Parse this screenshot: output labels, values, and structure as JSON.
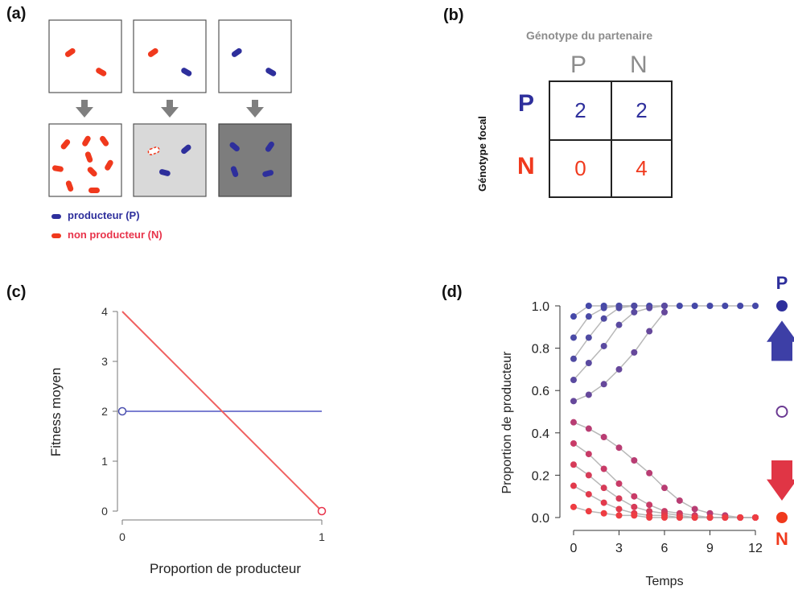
{
  "labels": {
    "a": "(a)",
    "b": "(b)",
    "c": "(c)",
    "d": "(d)"
  },
  "colors": {
    "producer": "#2e2f9c",
    "non_producer": "#f0391d",
    "gray": "#8c8c8c",
    "pink_red": "#e8334a"
  },
  "panel_a": {
    "legend": [
      {
        "text": "producteur (P)",
        "color": "#2e2f9c"
      },
      {
        "text": "non producteur (N)",
        "color": "#e8334a"
      }
    ]
  },
  "panel_b": {
    "title": "Génotype du partenaire",
    "row_axis": "Génotype focal",
    "col_headers": [
      "P",
      "N"
    ],
    "row_headers": [
      "P",
      "N"
    ],
    "cells": [
      [
        "2",
        "2"
      ],
      [
        "0",
        "4"
      ]
    ]
  },
  "chart_data": [
    {
      "type": "line",
      "xlabel": "Proportion de producteur",
      "ylabel": "Fitness moyen",
      "xlim": [
        0,
        1
      ],
      "ylim": [
        0,
        4
      ],
      "x_ticks": [
        "0",
        "1"
      ],
      "y_ticks": [
        "0",
        "1",
        "2",
        "3",
        "4"
      ],
      "grid": false,
      "series": [
        {
          "color": "#7b7fd1",
          "x": [
            0,
            1
          ],
          "y": [
            2,
            2
          ]
        },
        {
          "color": "#f06060",
          "x": [
            0,
            1
          ],
          "y": [
            4,
            0
          ]
        }
      ],
      "markers": [
        {
          "x": 0,
          "y": 2,
          "color": "#4a4fae"
        },
        {
          "x": 1,
          "y": 0,
          "color": "#e8334a"
        }
      ]
    },
    {
      "type": "line",
      "xlabel": "Temps",
      "ylabel": "Proportion de producteur",
      "xlim": [
        0,
        12
      ],
      "ylim": [
        0,
        1
      ],
      "x_ticks": [
        "0",
        "3",
        "6",
        "9",
        "12"
      ],
      "y_ticks": [
        "0.0",
        "0.2",
        "0.4",
        "0.6",
        "0.8",
        "1.0"
      ],
      "grid": false,
      "series": [
        {
          "color": "#4548a8",
          "x": [
            0,
            1,
            2,
            3,
            4,
            5,
            6,
            7,
            8,
            9,
            10,
            11,
            12
          ],
          "y": [
            0.95,
            1,
            1,
            1,
            1,
            1,
            1,
            1,
            1,
            1,
            1,
            1,
            1
          ]
        },
        {
          "color": "#4a4aa6",
          "x": [
            0,
            1,
            2,
            3,
            4
          ],
          "y": [
            0.85,
            0.95,
            0.99,
            1,
            1
          ]
        },
        {
          "color": "#4f4aa2",
          "x": [
            0,
            1,
            2,
            3,
            4
          ],
          "y": [
            0.75,
            0.85,
            0.94,
            0.99,
            1
          ]
        },
        {
          "color": "#5a4aa0",
          "x": [
            0,
            1,
            2,
            3,
            4,
            5,
            6
          ],
          "y": [
            0.65,
            0.73,
            0.81,
            0.91,
            0.97,
            0.99,
            1
          ]
        },
        {
          "color": "#66489b",
          "x": [
            0,
            1,
            2,
            3,
            4,
            5,
            6
          ],
          "y": [
            0.55,
            0.58,
            0.63,
            0.7,
            0.78,
            0.88,
            0.97
          ]
        },
        {
          "color": "#b83d73",
          "x": [
            0,
            1,
            2,
            3,
            4,
            5,
            6,
            7,
            8,
            9,
            10,
            11,
            12
          ],
          "y": [
            0.45,
            0.42,
            0.38,
            0.33,
            0.27,
            0.21,
            0.14,
            0.08,
            0.04,
            0.02,
            0.01,
            0,
            0
          ]
        },
        {
          "color": "#c83b67",
          "x": [
            0,
            1,
            2,
            3,
            4,
            5,
            6,
            7,
            8,
            9,
            10,
            11,
            12
          ],
          "y": [
            0.35,
            0.3,
            0.23,
            0.16,
            0.1,
            0.06,
            0.03,
            0.02,
            0.01,
            0,
            0,
            0,
            0
          ]
        },
        {
          "color": "#d63b58",
          "x": [
            0,
            1,
            2,
            3,
            4,
            5,
            6,
            7,
            8,
            9,
            10,
            11,
            12
          ],
          "y": [
            0.25,
            0.2,
            0.14,
            0.09,
            0.05,
            0.03,
            0.02,
            0.01,
            0,
            0,
            0,
            0,
            0
          ]
        },
        {
          "color": "#e23a4c",
          "x": [
            0,
            1,
            2,
            3,
            4,
            5,
            6,
            7,
            8,
            9,
            10,
            11,
            12
          ],
          "y": [
            0.15,
            0.11,
            0.07,
            0.04,
            0.02,
            0.01,
            0.01,
            0,
            0,
            0,
            0,
            0,
            0
          ]
        },
        {
          "color": "#ee3d42",
          "x": [
            0,
            1,
            2,
            3,
            4,
            5,
            6,
            7,
            8,
            9,
            10,
            11,
            12
          ],
          "y": [
            0.05,
            0.03,
            0.02,
            0.01,
            0.01,
            0,
            0,
            0,
            0,
            0,
            0,
            0,
            0
          ]
        }
      ],
      "side_axis": {
        "top": "P",
        "bottom": "N"
      }
    }
  ]
}
